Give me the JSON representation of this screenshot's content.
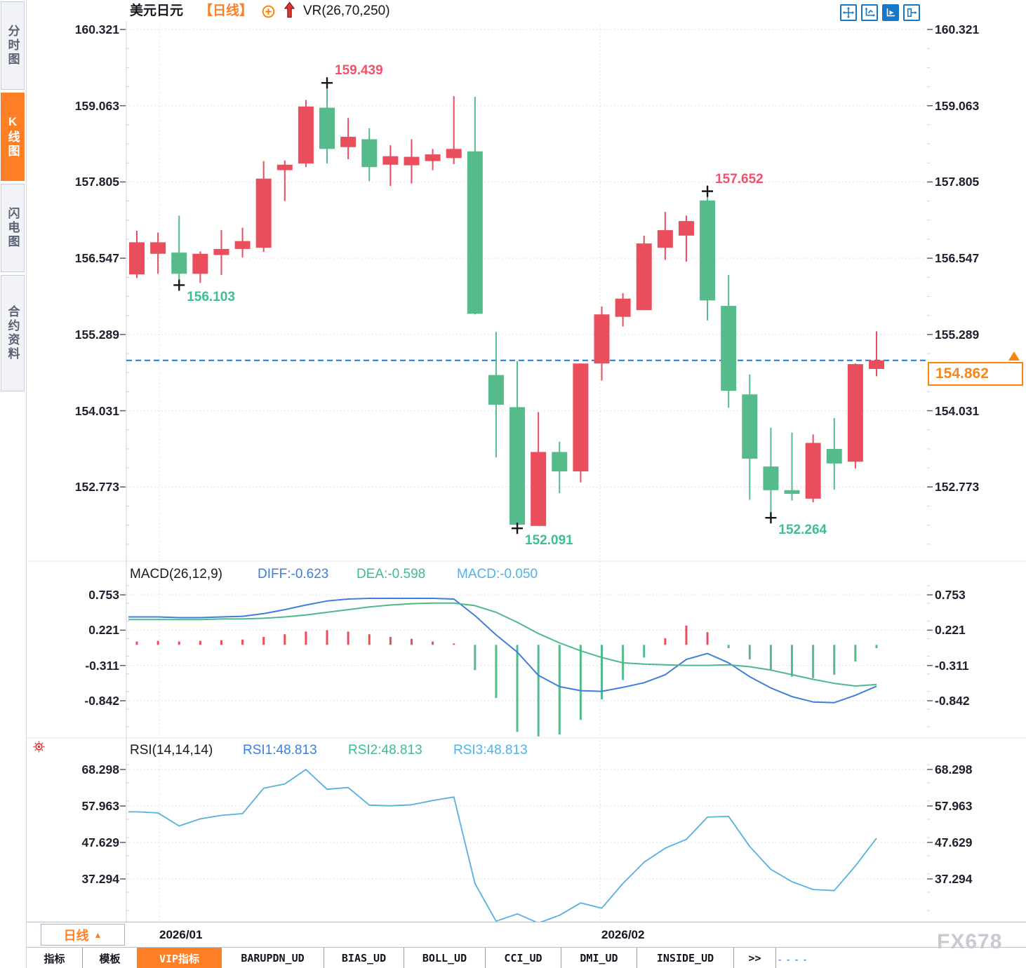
{
  "app": {
    "watermark": "FX678"
  },
  "sidebar": {
    "items": [
      {
        "label": "分时图",
        "active": false
      },
      {
        "label": "K线图",
        "active": true
      },
      {
        "label": "闪电图",
        "active": false
      },
      {
        "label": "合约资料",
        "active": false
      }
    ]
  },
  "header": {
    "symbol": "美元日元",
    "period_tag": "【日线】",
    "overlay_indicator": "VR(26,70,250)",
    "icons": [
      {
        "name": "pan-crosshair-icon",
        "active": false
      },
      {
        "name": "axis-range-icon",
        "active": false
      },
      {
        "name": "auto-scale-icon",
        "active": true
      },
      {
        "name": "collapse-panel-icon",
        "active": false
      }
    ]
  },
  "colors": {
    "up": "#ea4d5c",
    "down": "#55bb8a",
    "diff_line": "#3d7ede",
    "dea_line": "#4db98a",
    "rsi_line": "#55b0e0",
    "accent": "#ff7f27",
    "current_price_line": "#1778e8",
    "high_label": "#f5506b",
    "low_label": "#3ebd96"
  },
  "chart_data": {
    "type": "candlestick",
    "title": "美元日元 日线 (USD/JPY daily candles, red=up green=down)",
    "y_ticks": [
      160.321,
      159.063,
      157.805,
      156.547,
      155.289,
      154.031,
      152.773
    ],
    "open": [
      156.28,
      156.62,
      156.64,
      156.29,
      156.6,
      156.7,
      156.72,
      158.0,
      158.11,
      159.03,
      158.38,
      158.51,
      158.09,
      158.08,
      158.15,
      158.2,
      158.31,
      154.62,
      154.09,
      152.13,
      153.35,
      153.03,
      154.81,
      155.58,
      155.69,
      156.72,
      156.92,
      157.5,
      155.76,
      154.3,
      153.11,
      152.72,
      152.58,
      153.4,
      153.19,
      154.72
    ],
    "high": [
      157.0,
      156.97,
      157.25,
      156.66,
      157.01,
      157.05,
      158.15,
      158.16,
      159.16,
      159.439,
      158.86,
      158.69,
      158.41,
      158.51,
      158.35,
      159.22,
      159.21,
      155.33,
      154.85,
      154.01,
      153.52,
      154.81,
      155.75,
      155.97,
      156.92,
      157.31,
      157.25,
      157.652,
      156.27,
      154.63,
      153.75,
      153.67,
      153.64,
      153.91,
      154.81,
      155.34
    ],
    "low": [
      156.22,
      156.29,
      156.103,
      156.14,
      156.27,
      156.56,
      156.65,
      157.49,
      158.05,
      158.11,
      158.18,
      157.82,
      157.74,
      157.78,
      158.0,
      158.1,
      155.62,
      153.26,
      152.091,
      152.13,
      152.67,
      152.85,
      154.53,
      155.42,
      155.69,
      156.52,
      156.49,
      155.52,
      154.08,
      152.56,
      152.264,
      152.55,
      152.52,
      152.73,
      153.08,
      154.6
    ],
    "close": [
      156.81,
      156.81,
      156.29,
      156.62,
      156.7,
      156.83,
      157.86,
      158.09,
      159.05,
      158.35,
      158.55,
      158.05,
      158.23,
      158.22,
      158.26,
      158.35,
      155.63,
      154.13,
      152.15,
      153.35,
      153.03,
      154.81,
      155.62,
      155.88,
      156.79,
      157.01,
      157.16,
      155.85,
      154.36,
      153.24,
      152.72,
      152.66,
      153.5,
      153.16,
      154.8,
      154.862
    ],
    "current_price": 154.862,
    "x_labels": [
      {
        "label": "2026/01",
        "candle_index": 1
      },
      {
        "label": "2026/02",
        "candle_index": 22
      }
    ],
    "annotations": [
      {
        "text": "159.439",
        "candle_index": 9,
        "type": "high"
      },
      {
        "text": "156.103",
        "candle_index": 2,
        "type": "low"
      },
      {
        "text": "157.652",
        "candle_index": 27,
        "type": "high"
      },
      {
        "text": "152.091",
        "candle_index": 18,
        "type": "low"
      },
      {
        "text": "152.264",
        "candle_index": 30,
        "type": "low"
      }
    ],
    "macd": {
      "title": "MACD(26,12,9)",
      "diff_label": "DIFF:-0.623",
      "dea_label": "DEA:-0.598",
      "macd_label": "MACD:-0.050",
      "y_ticks": [
        0.753,
        0.221,
        -0.311,
        -0.842
      ],
      "diff": [
        0.42,
        0.42,
        0.41,
        0.41,
        0.42,
        0.43,
        0.47,
        0.53,
        0.6,
        0.66,
        0.69,
        0.7,
        0.7,
        0.7,
        0.7,
        0.69,
        0.44,
        0.15,
        -0.11,
        -0.46,
        -0.63,
        -0.69,
        -0.7,
        -0.64,
        -0.57,
        -0.45,
        -0.22,
        -0.13,
        -0.27,
        -0.48,
        -0.65,
        -0.78,
        -0.86,
        -0.87,
        -0.76,
        -0.623
      ],
      "dea": [
        0.38,
        0.38,
        0.38,
        0.38,
        0.39,
        0.39,
        0.4,
        0.42,
        0.45,
        0.49,
        0.53,
        0.57,
        0.6,
        0.62,
        0.63,
        0.63,
        0.59,
        0.49,
        0.34,
        0.17,
        0.03,
        -0.09,
        -0.19,
        -0.27,
        -0.29,
        -0.3,
        -0.31,
        -0.31,
        -0.3,
        -0.33,
        -0.38,
        -0.45,
        -0.52,
        -0.58,
        -0.62,
        -0.598
      ],
      "hist": [
        0.05,
        0.06,
        0.05,
        0.06,
        0.07,
        0.08,
        0.12,
        0.16,
        0.2,
        0.22,
        0.2,
        0.16,
        0.12,
        0.09,
        0.05,
        0.02,
        -0.38,
        -0.8,
        -1.31,
        -1.38,
        -1.35,
        -1.13,
        -0.82,
        -0.53,
        -0.19,
        0.1,
        0.29,
        0.19,
        -0.05,
        -0.22,
        -0.38,
        -0.48,
        -0.5,
        -0.45,
        -0.25,
        -0.05
      ]
    },
    "rsi": {
      "title": "RSI(14,14,14)",
      "rsi1_label": "RSI1:48.813",
      "rsi2_label": "RSI2:48.813",
      "rsi3_label": "RSI3:48.813",
      "y_ticks": [
        68.298,
        57.963,
        47.629,
        37.294
      ],
      "values": [
        56.3,
        56.0,
        52.3,
        54.3,
        55.3,
        55.8,
        63.0,
        64.2,
        68.298,
        62.7,
        63.2,
        58.2,
        58.0,
        58.3,
        59.5,
        60.5,
        36.0,
        25.3,
        27.4,
        24.8,
        27.0,
        30.5,
        29.0,
        36.0,
        42.0,
        46.0,
        48.5,
        54.8,
        55.0,
        46.5,
        40.0,
        36.5,
        34.3,
        34.0,
        41.0,
        48.813
      ]
    }
  },
  "price_box": {
    "value": "154.862"
  },
  "bottom_bar": {
    "period_button": {
      "label": "日线",
      "arrow": "▲"
    },
    "overflow_dashes": "- -  - -"
  },
  "tabs": [
    {
      "label": "指标",
      "active": false
    },
    {
      "label": "模板",
      "active": false
    },
    {
      "label": "VIP指标",
      "active": true
    },
    {
      "label": "BARUPDN_UD",
      "active": false
    },
    {
      "label": "BIAS_UD",
      "active": false
    },
    {
      "label": "BOLL_UD",
      "active": false
    },
    {
      "label": "CCI_UD",
      "active": false
    },
    {
      "label": "DMI_UD",
      "active": false
    },
    {
      "label": "INSIDE_UD",
      "active": false
    },
    {
      "label": ">>",
      "active": false
    }
  ]
}
